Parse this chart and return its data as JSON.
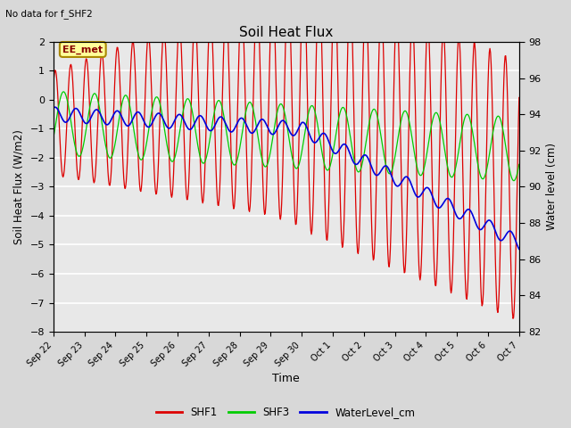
{
  "title": "Soil Heat Flux",
  "subtitle": "No data for f_SHF2",
  "xlabel": "Time",
  "ylabel": "Soil Heat Flux (W/m2)",
  "ylabel_right": "Water level (cm)",
  "ylim_left": [
    -8.0,
    2.0
  ],
  "ylim_right": [
    82,
    98
  ],
  "annotation": "EE_met",
  "background_color": "#d8d8d8",
  "plot_bg_color": "#e8e8e8",
  "grid_color": "#ffffff",
  "xtick_labels": [
    "Sep 22",
    "Sep 23",
    "Sep 24",
    "Sep 25",
    "Sep 26",
    "Sep 27",
    "Sep 28",
    "Sep 29",
    "Sep 30",
    "Oct 1",
    "Oct 2",
    "Oct 3",
    "Oct 4",
    "Oct 5",
    "Oct 6",
    "Oct 7"
  ],
  "ytick_left": [
    2.0,
    1.0,
    0.0,
    -1.0,
    -2.0,
    -3.0,
    -4.0,
    -5.0,
    -6.0,
    -7.0,
    -8.0
  ],
  "ytick_right": [
    98,
    96,
    94,
    92,
    90,
    88,
    86,
    84,
    82
  ],
  "line_colors": {
    "SHF1": "#dd0000",
    "SHF3": "#00cc00",
    "WaterLevel": "#0000dd"
  },
  "legend_labels": [
    "SHF1",
    "SHF3",
    "WaterLevel_cm"
  ],
  "figsize": [
    6.4,
    4.8
  ],
  "dpi": 100
}
